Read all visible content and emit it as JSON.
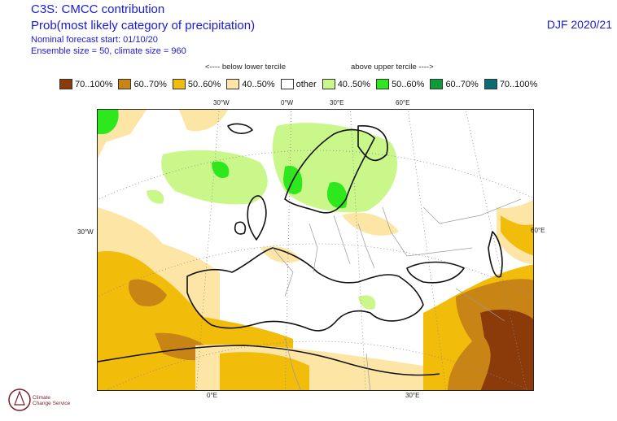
{
  "header": {
    "title": "C3S: CMCC contribution",
    "subtitle": "Prob(most likely category of precipitation)",
    "forecast_start": "Nominal forecast start: 01/10/20",
    "ensemble": "Ensemble size = 50, climate size = 960",
    "period": "DJF 2020/21"
  },
  "legend": {
    "below_header": "<---- below lower tercile",
    "above_header": "above upper tercile ---->",
    "items": [
      {
        "label": "70..100%",
        "color": "#8b3a0a"
      },
      {
        "label": "60..70%",
        "color": "#c88415"
      },
      {
        "label": "50..60%",
        "color": "#f2bd0a"
      },
      {
        "label": "40..50%",
        "color": "#fde5a5"
      },
      {
        "label": "other",
        "color": "#ffffff"
      },
      {
        "label": "40..50%",
        "color": "#caf78a"
      },
      {
        "label": "50..60%",
        "color": "#2ee81e"
      },
      {
        "label": "60..70%",
        "color": "#0f9a3a"
      },
      {
        "label": "70..100%",
        "color": "#0c6b75"
      }
    ]
  },
  "map": {
    "top_ticks": [
      "30°W",
      "0°W",
      "30°E",
      "60°E"
    ],
    "left_tick": "30°W",
    "right_tick": "60°E",
    "bottom_ticks": [
      "0°E",
      "30°E"
    ]
  },
  "logo": {
    "line1": "Climate",
    "line2": "Change Service"
  }
}
